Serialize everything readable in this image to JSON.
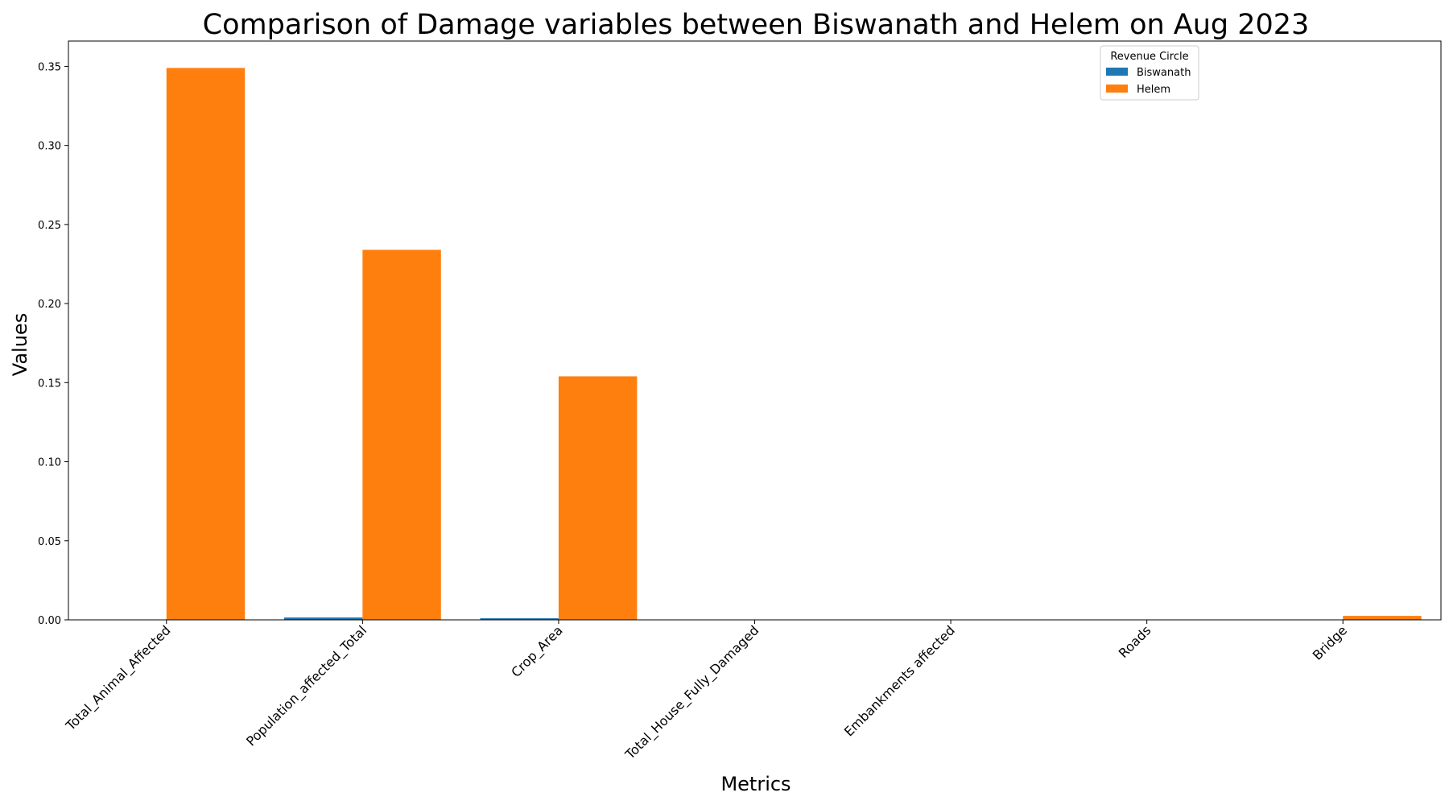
{
  "chart_data": {
    "type": "bar",
    "title": "Comparison of Damage variables between Biswanath and Helem on Aug 2023",
    "xlabel": "Metrics",
    "ylabel": "Values",
    "ylim": [
      0,
      0.366
    ],
    "yticks": [
      0.0,
      0.05,
      0.1,
      0.15,
      0.2,
      0.25,
      0.3,
      0.35
    ],
    "ytick_labels": [
      "0.00",
      "0.05",
      "0.10",
      "0.15",
      "0.20",
      "0.25",
      "0.30",
      "0.35"
    ],
    "categories": [
      "Total_Animal_Affected",
      "Population_affected_Total",
      "Crop_Area",
      "Total_House_Fully_Damaged",
      "Embankments affected",
      "Roads",
      "Bridge"
    ],
    "series": [
      {
        "name": "Biswanath",
        "color": "#1f77b4",
        "values": [
          0.0,
          0.0015,
          0.001,
          0.0,
          0.0,
          0.0,
          0.0
        ]
      },
      {
        "name": "Helem",
        "color": "#ff7f0e",
        "values": [
          0.349,
          0.234,
          0.154,
          0.0,
          0.0,
          0.0,
          0.0025
        ]
      }
    ],
    "legend": {
      "title": "Revenue Circle",
      "position": "top-right"
    },
    "grid": false
  }
}
